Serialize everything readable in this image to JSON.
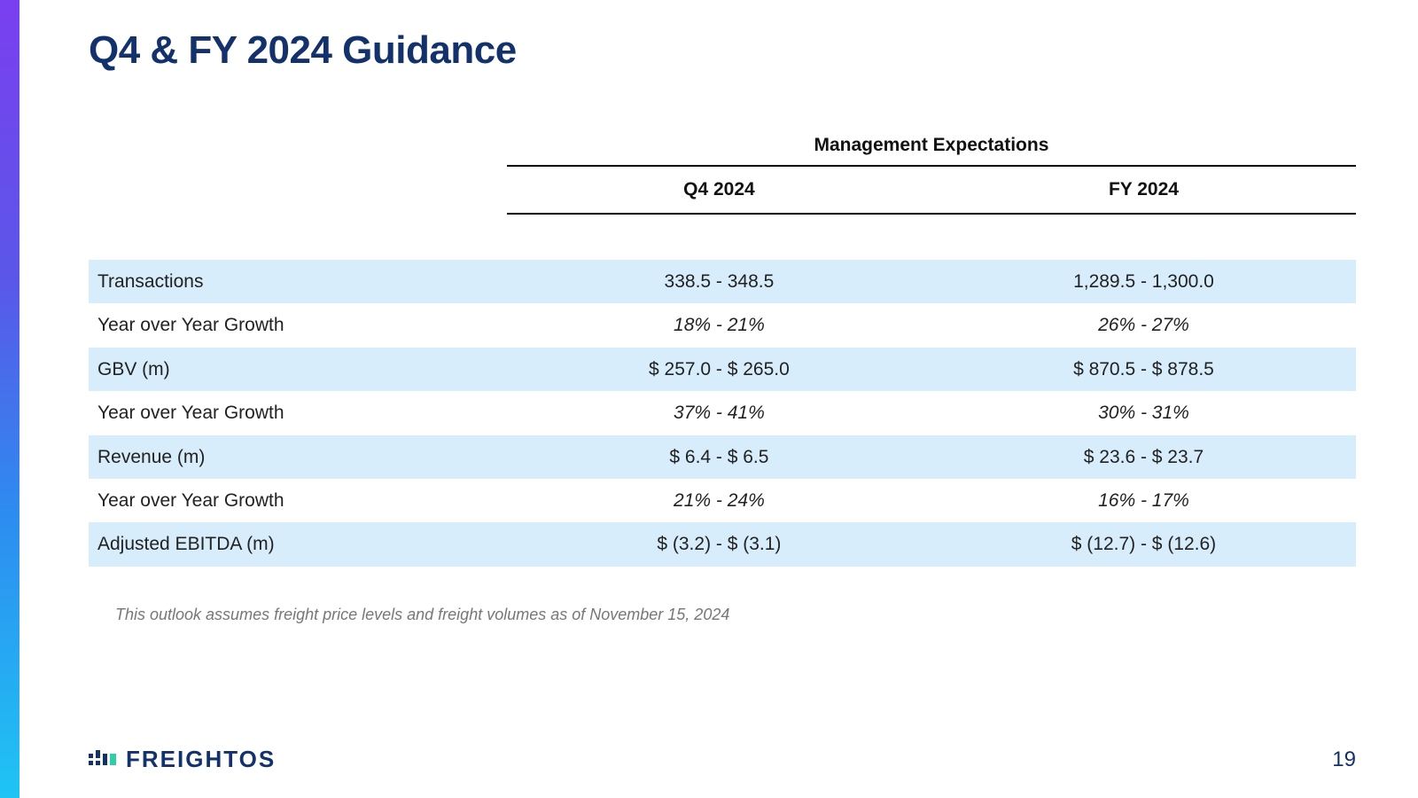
{
  "title": "Q4 & FY 2024 Guidance",
  "table": {
    "caption": "Management Expectations",
    "columns": [
      "Q4 2024",
      "FY 2024"
    ],
    "rows": [
      {
        "label": "Transactions",
        "q4": "338.5 - 348.5",
        "fy": "1,289.5 - 1,300.0",
        "shaded": true,
        "italic": false
      },
      {
        "label": "Year over Year Growth",
        "q4": "18% - 21%",
        "fy": "26% - 27%",
        "shaded": false,
        "italic": true
      },
      {
        "label": "GBV (m)",
        "q4": "$ 257.0 - $ 265.0",
        "fy": "$ 870.5 - $ 878.5",
        "shaded": true,
        "italic": false
      },
      {
        "label": "Year over Year Growth",
        "q4": "37% - 41%",
        "fy": "30% - 31%",
        "shaded": false,
        "italic": true
      },
      {
        "label": "Revenue (m)",
        "q4": "$ 6.4 - $ 6.5",
        "fy": "$ 23.6 - $ 23.7",
        "shaded": true,
        "italic": false
      },
      {
        "label": "Year over Year Growth",
        "q4": "21% - 24%",
        "fy": "16% - 17%",
        "shaded": false,
        "italic": true
      },
      {
        "label": "Adjusted EBITDA (m)",
        "q4": "$ (3.2) - $ (3.1)",
        "fy": "$ (12.7) - $ (12.6)",
        "shaded": true,
        "italic": false
      }
    ],
    "styling": {
      "shaded_bg": "#d8edfb",
      "text_color": "#222",
      "border_color": "#000000",
      "font_size_pt": 16
    }
  },
  "footnote": "This outlook assumes freight price levels and freight volumes as of November 15, 2024",
  "footer": {
    "brand": "FREIGHTOS",
    "page": "19"
  },
  "palette": {
    "title_color": "#13316b",
    "accent_gradient": [
      "#7a3ff0",
      "#5a57e8",
      "#2d8df0",
      "#1fc4f4"
    ],
    "logo_colors": {
      "bars_dark": "#13316b",
      "bar_teal": "#2fcfa5"
    }
  }
}
